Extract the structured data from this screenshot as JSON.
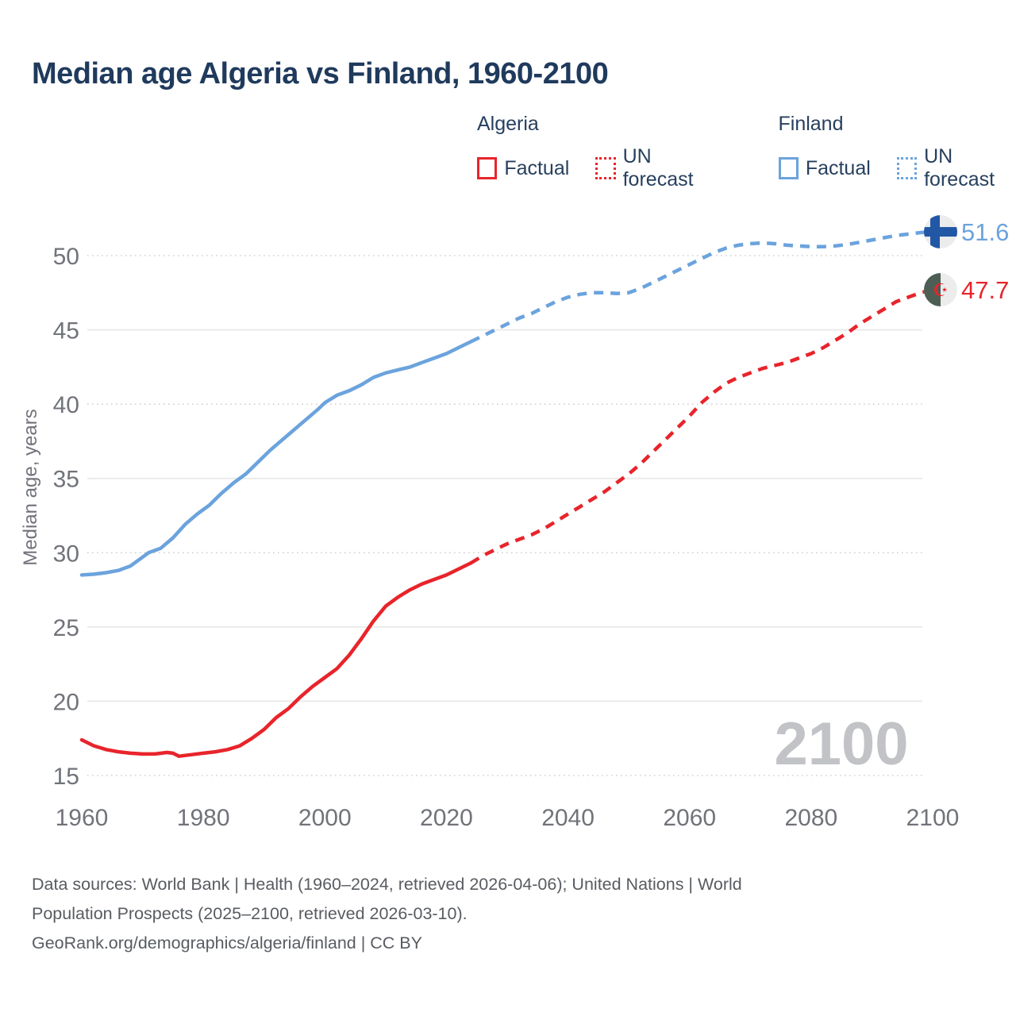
{
  "title": "Median age Algeria vs Finland, 1960-2100",
  "legend": {
    "algeria": {
      "label": "Algeria",
      "factual": "Factual",
      "forecast": "UN forecast"
    },
    "finland": {
      "label": "Finland",
      "factual": "Factual",
      "forecast": "UN forecast"
    }
  },
  "y_axis_title": "Median age, years",
  "watermark": "2100",
  "end_labels": {
    "finland": "51.6",
    "algeria": "47.7"
  },
  "footer_lines": [
    "Data sources: World Bank | Health (1960–2024, retrieved 2026-04-06); United Nations | World",
    "Population Prospects (2025–2100, retrieved 2026-03-10).",
    "GeoRank.org/demographics/algeria/finland | CC BY"
  ],
  "colors": {
    "algeria": "#e8242b",
    "finland": "#6ba3dd",
    "finland_flag_cross": "#2257a5",
    "algeria_flag_green": "#4d5f55",
    "flag_bg": "#ececec",
    "title_text": "#1f3a5c",
    "axis_text": "#707379",
    "footer_text": "#585c61",
    "watermark": "#c2c3c6"
  },
  "chart_data": {
    "type": "line",
    "title": "Median age Algeria vs Finland, 1960-2100",
    "xlabel": "",
    "ylabel": "Median age, years",
    "xlim": [
      1960,
      2100
    ],
    "ylim": [
      15,
      52
    ],
    "x_ticks": [
      1960,
      1980,
      2000,
      2020,
      2040,
      2060,
      2080,
      2100
    ],
    "y_ticks": [
      15,
      20,
      25,
      30,
      35,
      40,
      45,
      50
    ],
    "y_ticks_dotted": [
      15,
      30,
      40,
      50
    ],
    "grid": true,
    "legend_position": "top",
    "end_values": {
      "finland": 51.6,
      "algeria": 47.7
    },
    "series": [
      {
        "name": "Finland factual",
        "country": "Finland",
        "style": "solid",
        "color_key": "finland",
        "points": [
          [
            1960,
            28.5
          ],
          [
            1962,
            28.55
          ],
          [
            1964,
            28.65
          ],
          [
            1966,
            28.8
          ],
          [
            1968,
            29.1
          ],
          [
            1970,
            29.7
          ],
          [
            1971,
            30.0
          ],
          [
            1972,
            30.15
          ],
          [
            1973,
            30.3
          ],
          [
            1975,
            31.0
          ],
          [
            1977,
            31.9
          ],
          [
            1979,
            32.6
          ],
          [
            1981,
            33.2
          ],
          [
            1983,
            34.0
          ],
          [
            1985,
            34.7
          ],
          [
            1987,
            35.3
          ],
          [
            1989,
            36.1
          ],
          [
            1991,
            36.9
          ],
          [
            1993,
            37.6
          ],
          [
            1995,
            38.3
          ],
          [
            1997,
            39.0
          ],
          [
            1999,
            39.7
          ],
          [
            2000,
            40.1
          ],
          [
            2002,
            40.6
          ],
          [
            2004,
            40.9
          ],
          [
            2006,
            41.3
          ],
          [
            2008,
            41.8
          ],
          [
            2010,
            42.1
          ],
          [
            2012,
            42.3
          ],
          [
            2014,
            42.5
          ],
          [
            2016,
            42.8
          ],
          [
            2018,
            43.1
          ],
          [
            2020,
            43.4
          ],
          [
            2022,
            43.8
          ],
          [
            2024,
            44.2
          ]
        ]
      },
      {
        "name": "Finland UN forecast",
        "country": "Finland",
        "style": "dashed",
        "color_key": "finland",
        "points": [
          [
            2024,
            44.2
          ],
          [
            2026,
            44.6
          ],
          [
            2028,
            45.0
          ],
          [
            2030,
            45.4
          ],
          [
            2032,
            45.8
          ],
          [
            2034,
            46.1
          ],
          [
            2036,
            46.5
          ],
          [
            2038,
            46.9
          ],
          [
            2040,
            47.2
          ],
          [
            2042,
            47.4
          ],
          [
            2044,
            47.5
          ],
          [
            2046,
            47.5
          ],
          [
            2048,
            47.45
          ],
          [
            2050,
            47.5
          ],
          [
            2052,
            47.8
          ],
          [
            2054,
            48.2
          ],
          [
            2056,
            48.6
          ],
          [
            2058,
            49.0
          ],
          [
            2060,
            49.4
          ],
          [
            2062,
            49.8
          ],
          [
            2064,
            50.2
          ],
          [
            2066,
            50.5
          ],
          [
            2068,
            50.7
          ],
          [
            2070,
            50.8
          ],
          [
            2072,
            50.85
          ],
          [
            2074,
            50.8
          ],
          [
            2076,
            50.7
          ],
          [
            2078,
            50.65
          ],
          [
            2080,
            50.6
          ],
          [
            2082,
            50.6
          ],
          [
            2084,
            50.65
          ],
          [
            2086,
            50.75
          ],
          [
            2088,
            50.9
          ],
          [
            2090,
            51.05
          ],
          [
            2092,
            51.2
          ],
          [
            2094,
            51.35
          ],
          [
            2096,
            51.45
          ],
          [
            2098,
            51.55
          ],
          [
            2100,
            51.6
          ]
        ]
      },
      {
        "name": "Algeria factual",
        "country": "Algeria",
        "style": "solid",
        "color_key": "algeria",
        "points": [
          [
            1960,
            17.4
          ],
          [
            1962,
            17.0
          ],
          [
            1964,
            16.75
          ],
          [
            1966,
            16.6
          ],
          [
            1968,
            16.5
          ],
          [
            1970,
            16.45
          ],
          [
            1972,
            16.45
          ],
          [
            1974,
            16.55
          ],
          [
            1975,
            16.5
          ],
          [
            1976,
            16.3
          ],
          [
            1978,
            16.4
          ],
          [
            1980,
            16.5
          ],
          [
            1982,
            16.6
          ],
          [
            1984,
            16.75
          ],
          [
            1986,
            17.0
          ],
          [
            1988,
            17.5
          ],
          [
            1990,
            18.1
          ],
          [
            1992,
            18.9
          ],
          [
            1994,
            19.5
          ],
          [
            1996,
            20.3
          ],
          [
            1998,
            21.0
          ],
          [
            2000,
            21.6
          ],
          [
            2002,
            22.2
          ],
          [
            2004,
            23.1
          ],
          [
            2006,
            24.2
          ],
          [
            2008,
            25.4
          ],
          [
            2010,
            26.4
          ],
          [
            2012,
            27.0
          ],
          [
            2014,
            27.5
          ],
          [
            2016,
            27.9
          ],
          [
            2018,
            28.2
          ],
          [
            2020,
            28.5
          ],
          [
            2022,
            28.9
          ],
          [
            2024,
            29.3
          ]
        ]
      },
      {
        "name": "Algeria UN forecast",
        "country": "Algeria",
        "style": "dashed",
        "color_key": "algeria",
        "points": [
          [
            2024,
            29.3
          ],
          [
            2026,
            29.8
          ],
          [
            2028,
            30.2
          ],
          [
            2030,
            30.6
          ],
          [
            2032,
            30.9
          ],
          [
            2034,
            31.2
          ],
          [
            2036,
            31.6
          ],
          [
            2038,
            32.1
          ],
          [
            2040,
            32.6
          ],
          [
            2042,
            33.1
          ],
          [
            2044,
            33.6
          ],
          [
            2046,
            34.1
          ],
          [
            2048,
            34.7
          ],
          [
            2050,
            35.3
          ],
          [
            2052,
            36.0
          ],
          [
            2054,
            36.8
          ],
          [
            2056,
            37.6
          ],
          [
            2058,
            38.4
          ],
          [
            2060,
            39.2
          ],
          [
            2062,
            40.1
          ],
          [
            2064,
            40.8
          ],
          [
            2066,
            41.4
          ],
          [
            2068,
            41.8
          ],
          [
            2070,
            42.1
          ],
          [
            2072,
            42.4
          ],
          [
            2074,
            42.6
          ],
          [
            2076,
            42.8
          ],
          [
            2078,
            43.1
          ],
          [
            2080,
            43.4
          ],
          [
            2082,
            43.8
          ],
          [
            2084,
            44.3
          ],
          [
            2086,
            44.8
          ],
          [
            2088,
            45.4
          ],
          [
            2090,
            45.9
          ],
          [
            2092,
            46.4
          ],
          [
            2094,
            46.9
          ],
          [
            2096,
            47.2
          ],
          [
            2098,
            47.5
          ],
          [
            2100,
            47.7
          ]
        ]
      }
    ]
  }
}
